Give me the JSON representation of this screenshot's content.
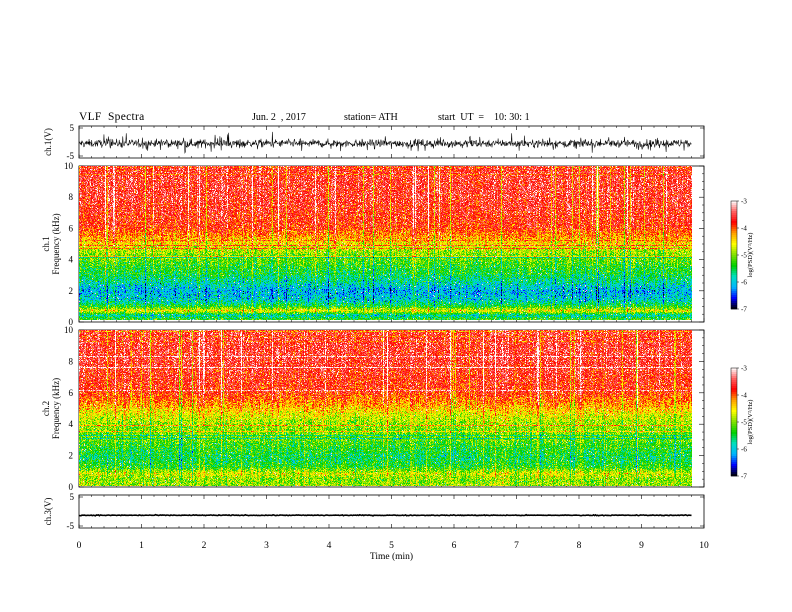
{
  "header": {
    "title": "VLF  Spectra",
    "date": "Jun. 2  , 2017",
    "station": "station= ATH",
    "start": "start  UT  =    10: 30: 1"
  },
  "chart_data": [
    {
      "panel": "ch1-waveform",
      "type": "line",
      "ylabel": "ch.1(V)",
      "ytick_labels": [
        "5",
        "-5"
      ],
      "ylim": [
        -5,
        5
      ],
      "xlim": [
        0,
        10
      ],
      "description_values": {
        "mean_v": -0.5,
        "typical_amplitude_v": 1.8,
        "data_end_min": 9.8
      }
    },
    {
      "panel": "ch1-spectrogram",
      "type": "heatmap",
      "ylabel_line1": "ch.1",
      "ylabel_line2": "Frequency  (kHz)",
      "yticks": [
        0,
        2,
        4,
        6,
        8,
        10
      ],
      "ylim": [
        0,
        10
      ],
      "xlim": [
        0,
        10
      ],
      "data_end_min": 9.8,
      "frequency_profile_kHz": [
        [
          0.0,
          -5.2
        ],
        [
          0.3,
          -5.8
        ],
        [
          0.6,
          -4.6
        ],
        [
          0.9,
          -5.4
        ],
        [
          1.3,
          -5.9
        ],
        [
          1.9,
          -6.1
        ],
        [
          2.5,
          -5.7
        ],
        [
          3.2,
          -5.4
        ],
        [
          4.0,
          -5.1
        ],
        [
          4.6,
          -4.8
        ],
        [
          5.2,
          -4.3
        ],
        [
          6.0,
          -3.8
        ],
        [
          8.0,
          -3.6
        ],
        [
          10.0,
          -3.6
        ]
      ],
      "colorbar": {
        "label": "log(PSD)(V²/Hz)",
        "ticks": [
          "-3",
          "-4",
          "-5",
          "-6",
          "-7"
        ],
        "range": [
          -7,
          -3
        ]
      }
    },
    {
      "panel": "ch2-spectrogram",
      "type": "heatmap",
      "ylabel_line1": "ch.2",
      "ylabel_line2": "Frequency  (kHz)",
      "yticks": [
        0,
        2,
        4,
        6,
        8,
        10
      ],
      "ylim": [
        0,
        10
      ],
      "xlim": [
        0,
        10
      ],
      "data_end_min": 9.8,
      "frequency_profile_kHz": [
        [
          0.0,
          -4.9
        ],
        [
          0.4,
          -5.0
        ],
        [
          0.8,
          -4.7
        ],
        [
          1.2,
          -5.3
        ],
        [
          1.8,
          -5.5
        ],
        [
          2.5,
          -5.3
        ],
        [
          3.2,
          -5.1
        ],
        [
          4.0,
          -4.9
        ],
        [
          4.6,
          -4.6
        ],
        [
          5.2,
          -4.2
        ],
        [
          6.0,
          -3.8
        ],
        [
          8.0,
          -3.6
        ],
        [
          10.0,
          -3.6
        ]
      ],
      "colorbar": {
        "label": "log(PSD)(V²/Hz)",
        "ticks": [
          "-3",
          "-4",
          "-5",
          "-6",
          "-7"
        ],
        "range": [
          -7,
          -3
        ]
      }
    },
    {
      "panel": "ch3-waveform",
      "type": "line",
      "ylabel": "ch.3(V)",
      "ytick_labels": [
        "5",
        "-5"
      ],
      "ylim": [
        -5,
        5
      ],
      "xlim": [
        0,
        10
      ],
      "description_values": {
        "mean_v": -1.3,
        "typical_amplitude_v": 0.25,
        "data_end_min": 9.8
      }
    },
    {
      "panel": "time-axis",
      "type": "axis",
      "xlabel": "Time  (min)",
      "xtick_labels": [
        "0",
        "1",
        "2",
        "3",
        "4",
        "5",
        "6",
        "7",
        "8",
        "9",
        "10"
      ],
      "xlim": [
        0,
        10
      ]
    }
  ],
  "colors": {
    "colormap": [
      "#000000",
      "#0000ff",
      "#00b4ff",
      "#00e0c0",
      "#00d000",
      "#80e000",
      "#ffff00",
      "#ffa000",
      "#ff0000",
      "#ff6060",
      "#ffffff"
    ]
  }
}
